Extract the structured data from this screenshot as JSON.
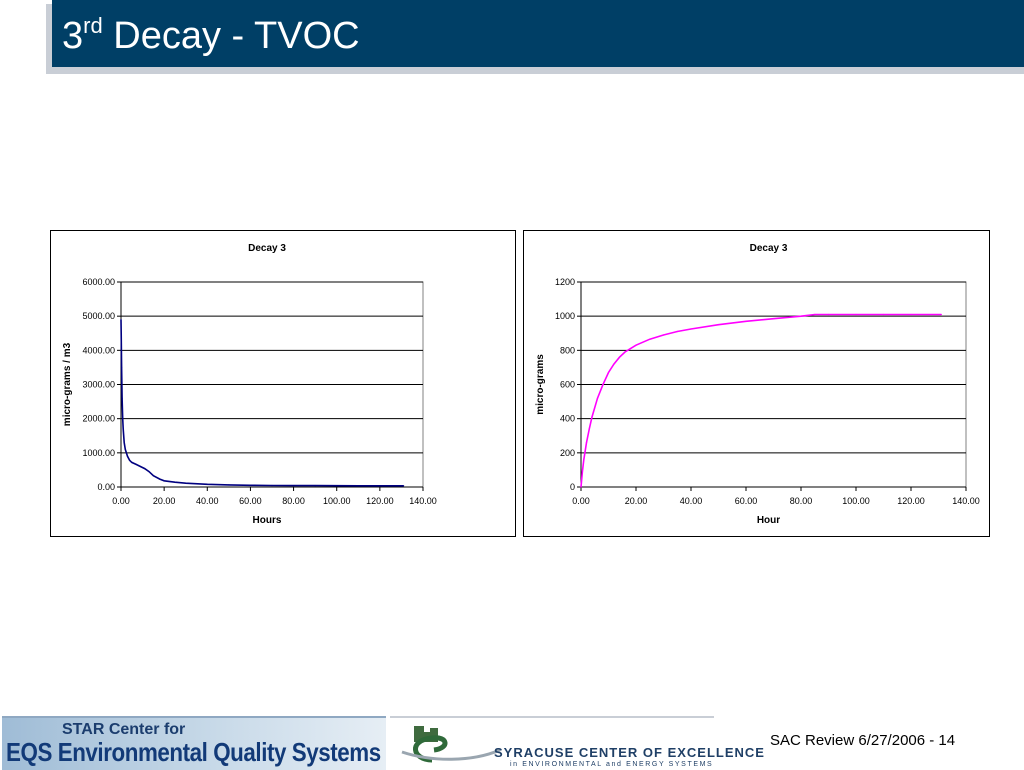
{
  "slide": {
    "title_number": "3",
    "title_superscript": "rd",
    "title_rest": "Decay - TVOC",
    "footer": "SAC Review 6/27/2006 - 14"
  },
  "logos": {
    "eqs_top": "STAR Center for",
    "eqs_main": "EQS Environmental Quality Systems",
    "syracuse_main": "SYRACUSE CENTER OF EXCELLENCE",
    "syracuse_sub": "in ENVIRONMENTAL and ENERGY SYSTEMS"
  },
  "colors": {
    "title_bar": "#003f66",
    "series_left": "#000080",
    "series_right": "#ff00ff",
    "grid": "#000000"
  },
  "chart_data": [
    {
      "type": "line",
      "title": "Decay 3",
      "xlabel": "Hours",
      "ylabel": "micro-grams / m3",
      "xlim": [
        0,
        140
      ],
      "ylim": [
        0,
        6000
      ],
      "xticks": [
        "0.00",
        "20.00",
        "40.00",
        "60.00",
        "80.00",
        "100.00",
        "120.00",
        "140.00"
      ],
      "yticks": [
        "0.00",
        "1000.00",
        "2000.00",
        "3000.00",
        "4000.00",
        "5000.00",
        "6000.00"
      ],
      "grid": "horizontal",
      "series": [
        {
          "x": [
            0,
            0.1,
            0.3,
            0.5,
            0.8,
            1,
            1.5,
            2,
            3,
            4,
            5,
            7,
            9,
            11,
            13,
            15,
            18,
            20,
            25,
            30,
            40,
            50,
            60,
            70,
            80,
            90,
            100,
            110,
            120,
            131
          ],
          "y": [
            4900,
            4500,
            3500,
            2600,
            2000,
            1700,
            1300,
            1100,
            900,
            780,
            720,
            660,
            600,
            540,
            450,
            330,
            230,
            180,
            140,
            110,
            80,
            60,
            50,
            45,
            42,
            40,
            38,
            36,
            35,
            35
          ]
        }
      ]
    },
    {
      "type": "line",
      "title": "Decay 3",
      "xlabel": "Hour",
      "ylabel": "micro-grams",
      "xlim": [
        0,
        140
      ],
      "ylim": [
        0,
        1200
      ],
      "xticks": [
        "0.00",
        "20.00",
        "40.00",
        "60.00",
        "80.00",
        "100.00",
        "120.00",
        "140.00"
      ],
      "yticks": [
        "0",
        "200",
        "400",
        "600",
        "800",
        "1000",
        "1200"
      ],
      "grid": "horizontal",
      "series": [
        {
          "x": [
            0,
            0.5,
            1,
            2,
            3,
            4,
            6,
            8,
            10,
            12,
            14,
            16,
            18,
            20,
            25,
            30,
            35,
            40,
            50,
            60,
            70,
            80,
            85,
            90,
            100,
            110,
            120,
            131
          ],
          "y": [
            0,
            90,
            160,
            260,
            340,
            410,
            520,
            600,
            670,
            720,
            760,
            790,
            810,
            830,
            865,
            890,
            910,
            925,
            950,
            970,
            985,
            1000,
            1010,
            1010,
            1010,
            1010,
            1010,
            1010
          ]
        }
      ]
    }
  ]
}
